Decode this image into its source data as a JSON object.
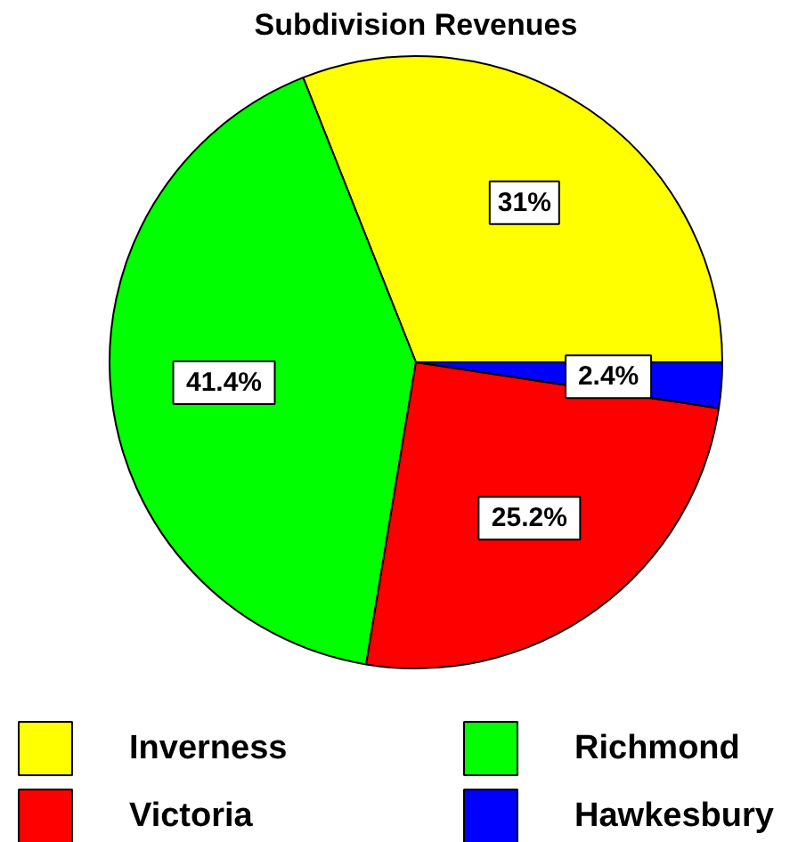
{
  "chart_data": {
    "type": "pie",
    "title": "Subdivision Revenues",
    "categories": [
      "Inverness",
      "Richmond",
      "Victoria",
      "Hawkesbury"
    ],
    "values": [
      31,
      41.4,
      25.2,
      2.4
    ],
    "colors": [
      "#ffff00",
      "#00ff00",
      "#ff0000",
      "#0000ff"
    ],
    "value_labels": [
      "31%",
      "41.4%",
      "25.2%",
      "2.4%"
    ],
    "legend": "bottom"
  }
}
